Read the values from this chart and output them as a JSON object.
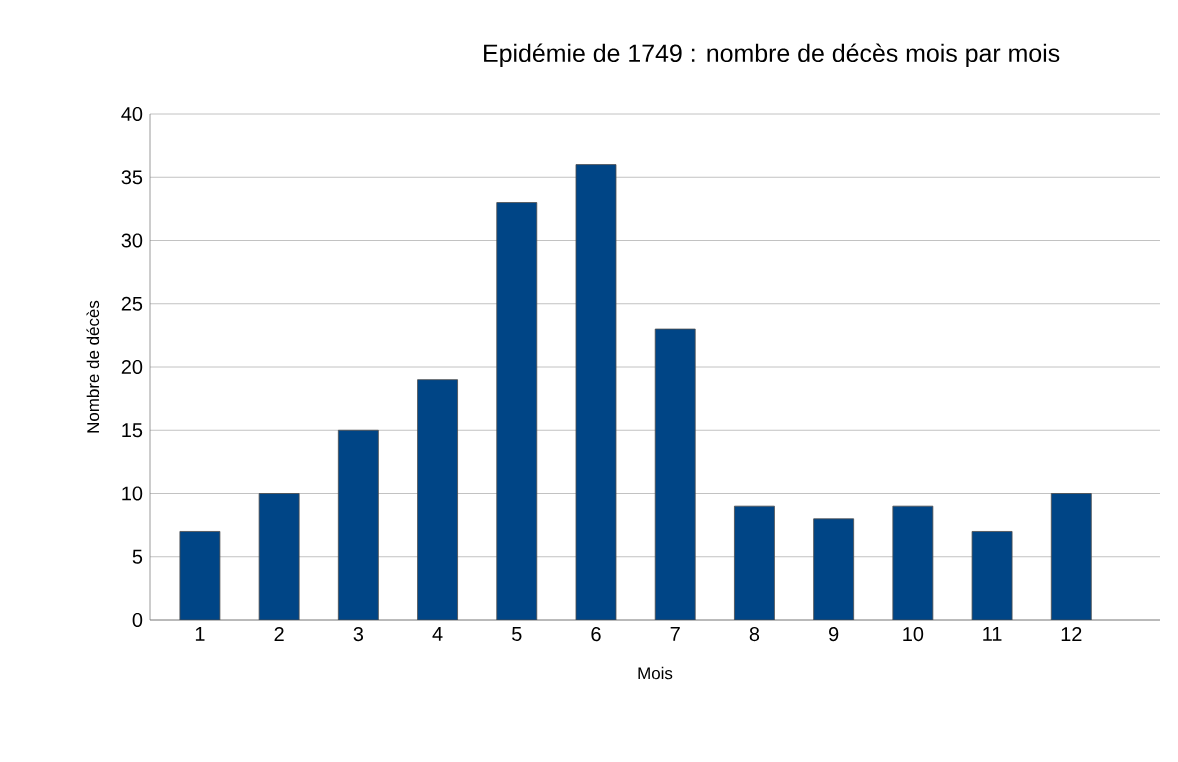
{
  "chart_data": {
    "type": "bar",
    "title": "Epidémie de 1749 : nombre de décès mois par mois",
    "xlabel": "Mois",
    "ylabel": "Nombre de décès",
    "categories": [
      "1",
      "2",
      "3",
      "4",
      "5",
      "6",
      "7",
      "8",
      "9",
      "10",
      "11",
      "12"
    ],
    "values": [
      7,
      10,
      15,
      19,
      33,
      36,
      23,
      9,
      8,
      9,
      7,
      10
    ],
    "color": "#004586",
    "ylim": [
      0,
      40
    ],
    "yticks": [
      0,
      5,
      10,
      15,
      20,
      25,
      30,
      35,
      40
    ],
    "grid": "y"
  }
}
